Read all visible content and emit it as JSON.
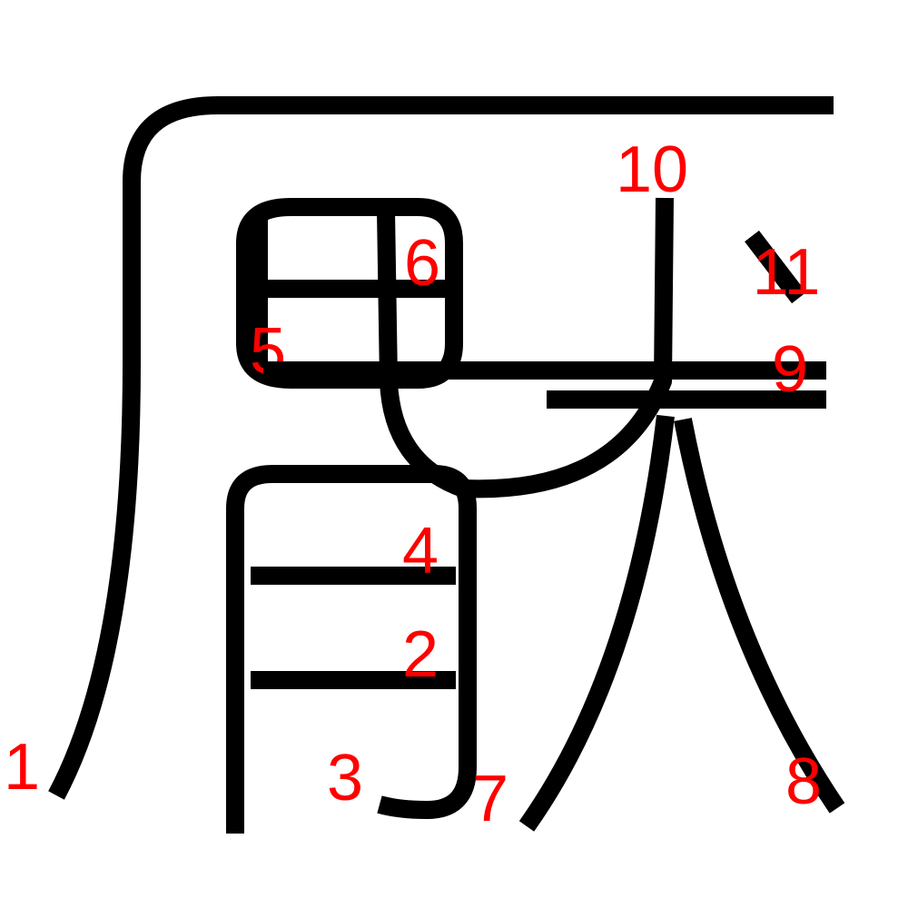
{
  "colors": {
    "stroke": "#000000",
    "number": "#ff0000",
    "background": "#ffffff"
  },
  "stroke_numbers": [
    "1",
    "2",
    "3",
    "4",
    "5",
    "6",
    "7",
    "8",
    "9",
    "10",
    "11"
  ]
}
